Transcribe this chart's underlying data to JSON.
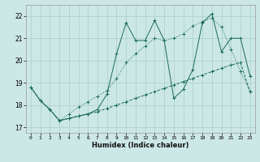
{
  "xlabel": "Humidex (Indice chaleur)",
  "bg_color": "#cce8e6",
  "grid_color": "#aaccca",
  "line_color": "#1a6b5a",
  "xlim": [
    -0.5,
    23.5
  ],
  "ylim": [
    16.75,
    22.5
  ],
  "yticks": [
    17,
    18,
    19,
    20,
    21,
    22
  ],
  "xticks": [
    0,
    1,
    2,
    3,
    4,
    5,
    6,
    7,
    8,
    9,
    10,
    11,
    12,
    13,
    14,
    15,
    16,
    17,
    18,
    19,
    20,
    21,
    22,
    23
  ],
  "line_straight_x": [
    0,
    1,
    2,
    3,
    4,
    5,
    6,
    7,
    8,
    9,
    10,
    11,
    12,
    13,
    14,
    15,
    16,
    17,
    18,
    19,
    20,
    21,
    22,
    23
  ],
  "line_straight_y": [
    18.8,
    18.2,
    17.8,
    17.3,
    17.4,
    17.5,
    17.6,
    17.7,
    17.85,
    18.0,
    18.15,
    18.3,
    18.45,
    18.6,
    18.75,
    18.9,
    19.05,
    19.2,
    19.35,
    19.5,
    19.65,
    19.8,
    19.9,
    18.6
  ],
  "line_diag_x": [
    0,
    1,
    2,
    3,
    4,
    5,
    6,
    7,
    8,
    9,
    10,
    11,
    12,
    13,
    14,
    15,
    16,
    17,
    18,
    19,
    20,
    21,
    22,
    23
  ],
  "line_diag_y": [
    18.8,
    18.2,
    17.8,
    17.3,
    17.6,
    17.9,
    18.15,
    18.4,
    18.65,
    19.2,
    19.9,
    20.3,
    20.65,
    21.0,
    20.9,
    21.0,
    21.2,
    21.55,
    21.75,
    21.9,
    21.5,
    20.5,
    19.5,
    18.6
  ],
  "line_zz_x": [
    0,
    1,
    2,
    3,
    4,
    5,
    6,
    7,
    8,
    9,
    10,
    11,
    12,
    13,
    14,
    15,
    16,
    17,
    18,
    19,
    20,
    21,
    22,
    23
  ],
  "line_zz_y": [
    18.8,
    18.2,
    17.8,
    17.3,
    17.4,
    17.5,
    17.6,
    17.8,
    18.5,
    20.3,
    21.7,
    20.9,
    20.9,
    21.8,
    20.9,
    18.3,
    18.7,
    19.6,
    21.7,
    22.1,
    20.4,
    21.0,
    21.0,
    19.3
  ]
}
